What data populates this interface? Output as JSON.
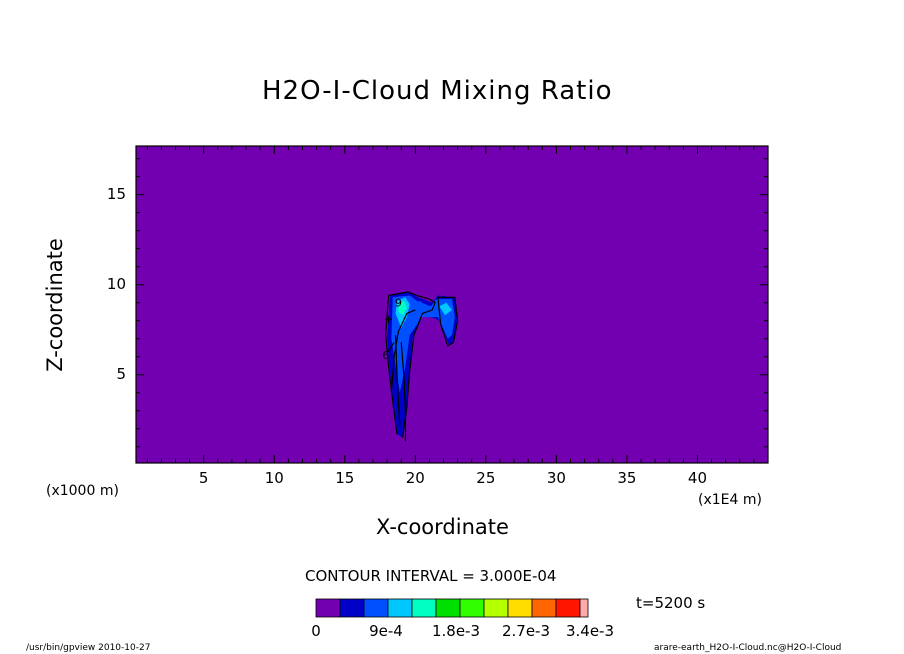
{
  "chart_data": {
    "type": "contour",
    "title": "H2O-I-Cloud Mixing Ratio",
    "xlabel": "X-coordinate",
    "ylabel": "Z-coordinate",
    "x_unit": "(x1E4 m)",
    "y_unit": "(x1000 m)",
    "xlim": [
      0.2,
      45
    ],
    "ylim": [
      0.1,
      17.7
    ],
    "x_ticks": [
      5,
      10,
      15,
      20,
      25,
      30,
      35,
      40
    ],
    "y_ticks": [
      5,
      10,
      15
    ],
    "contour_interval_text": "CONTOUR INTERVAL = 3.000E-04",
    "time_text": "t=5200 s",
    "colorbar": {
      "colors": [
        "#7300b0",
        "#0000c8",
        "#0050ff",
        "#00c8ff",
        "#00ffc0",
        "#00e000",
        "#30ff00",
        "#b4ff00",
        "#ffdd00",
        "#ff6600",
        "#ff1500",
        "#ffaaaa"
      ],
      "labels": [
        "0",
        "9e-4",
        "1.8e-3",
        "2.7e-3",
        "3.4e-3"
      ]
    },
    "background_color": "#7300b0",
    "regions": [
      {
        "level": 1,
        "color": "#0000c8",
        "points": [
          [
            18.2,
            9.4
          ],
          [
            19.6,
            9.6
          ],
          [
            20.2,
            9.3
          ],
          [
            21.2,
            9.0
          ],
          [
            21.6,
            9.4
          ],
          [
            22.8,
            9.3
          ],
          [
            23.0,
            8.2
          ],
          [
            22.8,
            7.0
          ],
          [
            22.4,
            6.6
          ],
          [
            21.7,
            8.0
          ],
          [
            20.6,
            8.4
          ],
          [
            19.8,
            7.0
          ],
          [
            19.6,
            5.0
          ],
          [
            19.4,
            3.0
          ],
          [
            19.1,
            1.5
          ],
          [
            18.7,
            1.7
          ],
          [
            18.5,
            3.0
          ],
          [
            18.2,
            5.0
          ],
          [
            18.0,
            7.0
          ]
        ]
      },
      {
        "level": 2,
        "color": "#0050ff",
        "points": [
          [
            18.4,
            9.3
          ],
          [
            19.6,
            9.4
          ],
          [
            20.1,
            9.1
          ],
          [
            21.1,
            8.8
          ],
          [
            21.5,
            9.2
          ],
          [
            22.6,
            9.2
          ],
          [
            22.8,
            8.2
          ],
          [
            22.6,
            7.2
          ],
          [
            22.3,
            7.0
          ],
          [
            21.6,
            8.2
          ],
          [
            20.5,
            8.2
          ],
          [
            19.6,
            7.2
          ],
          [
            19.3,
            5.5
          ],
          [
            18.9,
            4.0
          ],
          [
            18.6,
            5.5
          ],
          [
            18.3,
            7.0
          ]
        ]
      },
      {
        "level": 2,
        "color": "#0050ff",
        "points": [
          [
            19.7,
            8.9
          ],
          [
            20.4,
            9.1
          ],
          [
            20.7,
            8.5
          ],
          [
            20.4,
            8.2
          ],
          [
            19.9,
            8.3
          ]
        ]
      },
      {
        "level": 3,
        "color": "#00c8ff",
        "points": [
          [
            18.7,
            9.1
          ],
          [
            19.3,
            9.3
          ],
          [
            19.6,
            8.9
          ],
          [
            19.4,
            8.2
          ],
          [
            19.0,
            7.6
          ],
          [
            18.6,
            8.4
          ]
        ]
      },
      {
        "level": 4,
        "color": "#00ffc0",
        "points": [
          [
            18.8,
            8.9
          ],
          [
            19.2,
            9.1
          ],
          [
            19.4,
            8.7
          ],
          [
            19.1,
            8.3
          ],
          [
            18.8,
            8.5
          ]
        ]
      },
      {
        "level": 3,
        "color": "#00c8ff",
        "points": [
          [
            21.7,
            8.8
          ],
          [
            22.2,
            9.0
          ],
          [
            22.6,
            8.6
          ],
          [
            22.1,
            8.3
          ]
        ]
      }
    ],
    "contour_lines": [
      [
        [
          18.1,
          9.4
        ],
        [
          19.5,
          9.6
        ],
        [
          20.1,
          9.4
        ],
        [
          21.0,
          9.2
        ],
        [
          21.4,
          9.0
        ],
        [
          21.2,
          8.6
        ],
        [
          20.5,
          8.4
        ],
        [
          19.9,
          7.2
        ],
        [
          19.6,
          5.2
        ],
        [
          19.4,
          3.2
        ],
        [
          19.1,
          1.5
        ]
      ],
      [
        [
          18.7,
          1.7
        ],
        [
          18.4,
          3.5
        ],
        [
          18.1,
          5.5
        ],
        [
          17.9,
          7.2
        ],
        [
          18.1,
          9.4
        ]
      ],
      [
        [
          18.6,
          7.2
        ],
        [
          18.7,
          5.0
        ],
        [
          18.8,
          3.5
        ],
        [
          18.9,
          2.2
        ]
      ],
      [
        [
          19.0,
          6.8
        ],
        [
          19.2,
          4.8
        ],
        [
          19.3,
          3.0
        ],
        [
          19.3,
          1.3
        ]
      ],
      [
        [
          18.3,
          4.0
        ],
        [
          18.5,
          6.0
        ],
        [
          18.8,
          7.4
        ],
        [
          19.4,
          8.4
        ],
        [
          20.0,
          8.6
        ]
      ],
      [
        [
          21.6,
          9.3
        ],
        [
          22.8,
          9.3
        ],
        [
          23.0,
          8.0
        ],
        [
          22.7,
          6.8
        ],
        [
          22.3,
          6.6
        ],
        [
          21.8,
          7.8
        ],
        [
          21.6,
          9.3
        ]
      ],
      [
        [
          17.9,
          8.1
        ],
        [
          18.3,
          8.1
        ]
      ],
      [
        [
          18.0,
          6.2
        ],
        [
          18.5,
          6.8
        ]
      ]
    ],
    "contour_labels": [
      {
        "text": "9",
        "x": 18.8,
        "y": 9.0
      },
      {
        "text": "6",
        "x": 17.9,
        "y": 6.1
      },
      {
        "text": "+",
        "x": 18.1,
        "y": 8.1
      }
    ]
  },
  "footer": {
    "left": "/usr/bin/gpview   2010-10-27",
    "right": "arare-earth_H2O-I-Cloud.nc@H2O-I-Cloud"
  }
}
